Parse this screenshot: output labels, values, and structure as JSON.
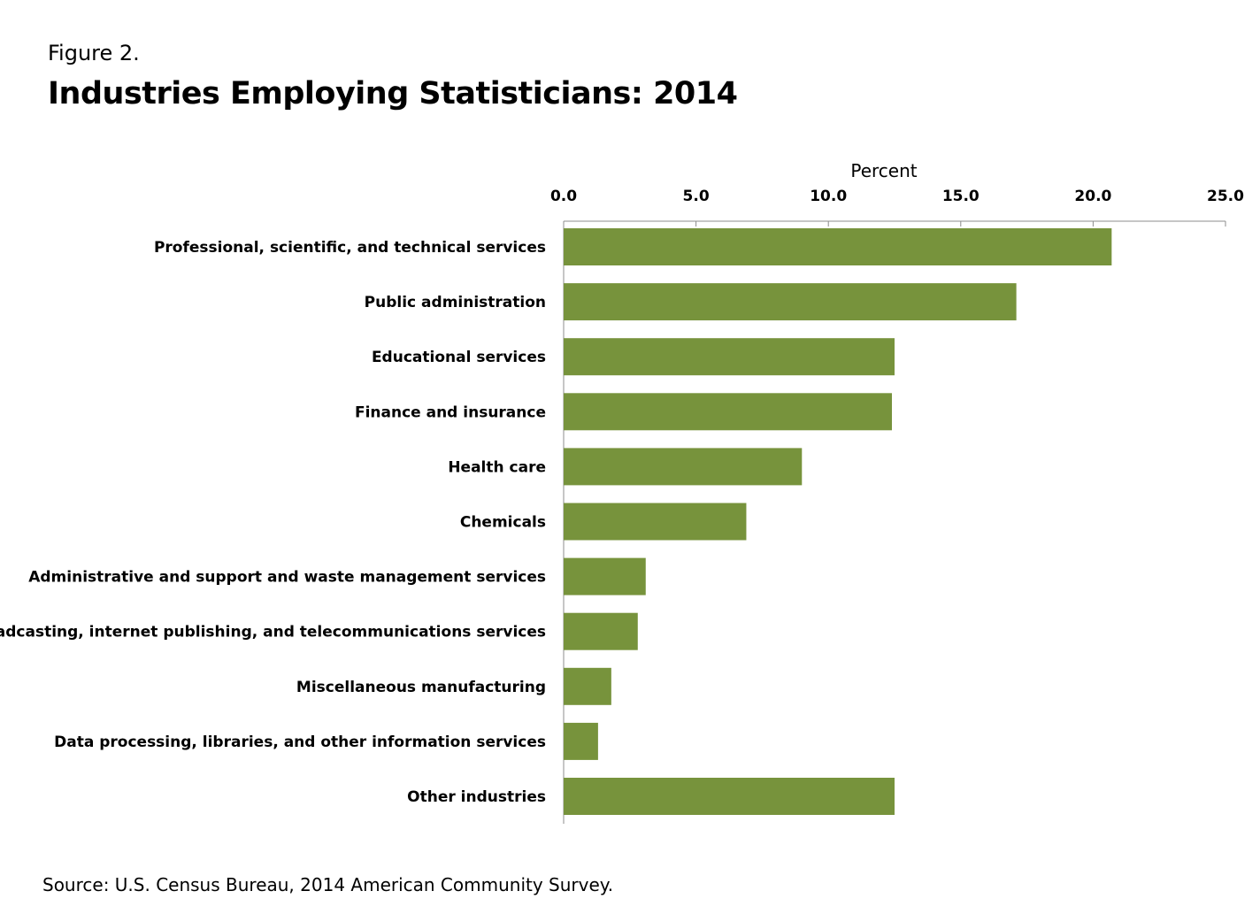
{
  "header": {
    "figure_label": "Figure 2.",
    "title": "Industries Employing Statisticians: 2014"
  },
  "footer": {
    "source": "Source: U.S. Census Bureau, 2014 American Community Survey."
  },
  "chart_data": {
    "type": "bar",
    "orientation": "horizontal",
    "title": "Industries Employing Statisticians: 2014",
    "xlabel": "Percent",
    "ylabel": "",
    "xlim": [
      0,
      25
    ],
    "ticks": [
      "0.0",
      "5.0",
      "10.0",
      "15.0",
      "20.0",
      "25.0"
    ],
    "tick_values": [
      0,
      5,
      10,
      15,
      20,
      25
    ],
    "axis_position": "top",
    "grid": false,
    "bar_color": "#77933c",
    "categories": [
      "Professional, scientific, and technical services",
      "Public administration",
      "Educational services",
      "Finance and insurance",
      "Health care",
      "Chemicals",
      "Administrative and support and waste management services",
      "Broadcasting, internet publishing, and telecommunications services",
      "Miscellaneous manufacturing",
      "Data processing, libraries, and other information services",
      "Other industries"
    ],
    "values": [
      20.7,
      17.1,
      12.5,
      12.4,
      9.0,
      6.9,
      3.1,
      2.8,
      1.8,
      1.3,
      12.5
    ]
  }
}
